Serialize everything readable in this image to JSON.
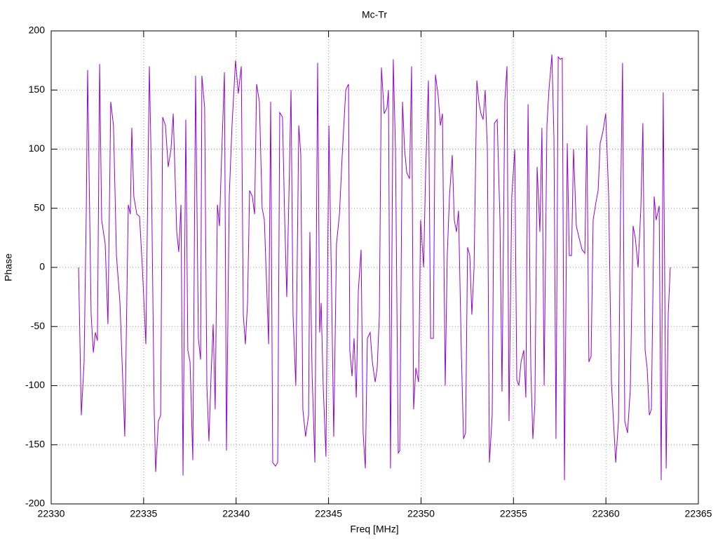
{
  "chart_data": {
    "type": "line",
    "title": "Mc-Tr",
    "x_label": "Freq [MHz]",
    "y_label": "Phase",
    "xlim": [
      22330,
      22365
    ],
    "xticks": [
      22330,
      22335,
      22340,
      22345,
      22350,
      22355,
      22360,
      22365
    ],
    "ylim": [
      -200,
      200
    ],
    "yticks": [
      -200,
      -150,
      -100,
      -50,
      0,
      50,
      100,
      150,
      200
    ],
    "grid": true,
    "series": [
      {
        "color": "#9400d3",
        "x": [
          22331.48,
          22331.63,
          22331.78,
          22331.9,
          22331.97,
          22332.05,
          22332.16,
          22332.28,
          22332.39,
          22332.5,
          22332.62,
          22332.73,
          22332.92,
          22333.07,
          22333.22,
          22333.37,
          22333.53,
          22333.72,
          22333.98,
          22334.17,
          22334.28,
          22334.36,
          22334.47,
          22334.63,
          22334.78,
          22334.93,
          22335.12,
          22335.31,
          22335.42,
          22335.57,
          22335.65,
          22335.8,
          22335.92,
          22336.03,
          22336.18,
          22336.33,
          22336.48,
          22336.6,
          22336.79,
          22336.9,
          22337.02,
          22337.13,
          22337.28,
          22337.39,
          22337.51,
          22337.66,
          22337.81,
          22337.96,
          22338.08,
          22338.15,
          22338.3,
          22338.42,
          22338.53,
          22338.65,
          22338.76,
          22338.87,
          22338.99,
          22339.1,
          22339.21,
          22339.37,
          22339.48,
          22339.63,
          22339.78,
          22339.97,
          22340.12,
          22340.28,
          22340.39,
          22340.5,
          22340.62,
          22340.73,
          22340.88,
          22341.0,
          22341.11,
          22341.26,
          22341.41,
          22341.53,
          22341.64,
          22341.76,
          22341.87,
          22341.98,
          22342.13,
          22342.25,
          22342.36,
          22342.51,
          22342.63,
          22342.74,
          22342.85,
          22342.97,
          22343.08,
          22343.23,
          22343.39,
          22343.5,
          22343.61,
          22343.76,
          22343.92,
          22343.99,
          22344.11,
          22344.26,
          22344.41,
          22344.52,
          22344.6,
          22344.71,
          22344.86,
          22345.02,
          22345.17,
          22345.28,
          22345.43,
          22345.59,
          22345.74,
          22345.93,
          22346.08,
          22346.15,
          22346.27,
          22346.38,
          22346.5,
          22346.61,
          22346.76,
          22346.87,
          22346.99,
          22347.1,
          22347.25,
          22347.37,
          22347.52,
          22347.63,
          22347.75,
          22347.86,
          22348.01,
          22348.16,
          22348.24,
          22348.35,
          22348.5,
          22348.62,
          22348.77,
          22348.85,
          22349.0,
          22349.11,
          22349.23,
          22349.38,
          22349.49,
          22349.6,
          22349.72,
          22349.87,
          22349.98,
          22350.14,
          22350.25,
          22350.4,
          22350.52,
          22350.67,
          22350.78,
          22350.93,
          22351.05,
          22351.16,
          22351.31,
          22351.42,
          22351.54,
          22351.69,
          22351.8,
          22351.92,
          22352.03,
          22352.18,
          22352.3,
          22352.41,
          22352.52,
          22352.64,
          22352.75,
          22352.87,
          22353.02,
          22353.13,
          22353.24,
          22353.36,
          22353.47,
          22353.59,
          22353.7,
          22353.85,
          22353.97,
          22354.12,
          22354.27,
          22354.38,
          22354.53,
          22354.65,
          22354.76,
          22354.91,
          22355.07,
          22355.18,
          22355.29,
          22355.41,
          22355.56,
          22355.67,
          22355.79,
          22355.94,
          22356.05,
          22356.16,
          22356.28,
          22356.43,
          22356.54,
          22356.66,
          22356.81,
          22356.92,
          22357.08,
          22357.19,
          22357.3,
          22357.42,
          22357.53,
          22357.64,
          22357.76,
          22357.91,
          22358.02,
          22358.14,
          22358.25,
          22358.4,
          22358.55,
          22358.71,
          22358.86,
          22358.97,
          22359.08,
          22359.2,
          22359.31,
          22359.46,
          22359.58,
          22359.69,
          22359.84,
          22359.99,
          22360.15,
          22360.3,
          22360.41,
          22360.53,
          22360.68,
          22360.79,
          22360.9,
          22361.02,
          22361.17,
          22361.32,
          22361.47,
          22361.59,
          22361.74,
          22361.89,
          22362.0,
          22362.12,
          22362.23,
          22362.35,
          22362.46,
          22362.61,
          22362.72,
          22362.88,
          22362.99,
          22363.1,
          22363.26,
          22363.37,
          22363.48
        ],
        "values": [
          0,
          -125,
          -80,
          50,
          167,
          80,
          -40,
          -72,
          -55,
          -62,
          172,
          40,
          20,
          -48,
          140,
          120,
          10,
          -30,
          -143,
          53,
          45,
          118,
          60,
          45,
          43,
          0,
          -65,
          170,
          80,
          -120,
          -173,
          -130,
          -125,
          127,
          120,
          85,
          100,
          130,
          30,
          13,
          53,
          -176,
          125,
          -70,
          -80,
          -163,
          162,
          -60,
          -78,
          162,
          135,
          -100,
          -147,
          -90,
          -48,
          -120,
          53,
          35,
          90,
          165,
          -155,
          60,
          120,
          175,
          147,
          170,
          -40,
          -65,
          -30,
          65,
          60,
          45,
          155,
          140,
          50,
          40,
          -10,
          -65,
          140,
          -165,
          -168,
          -165,
          131,
          127,
          40,
          -25,
          55,
          150,
          -40,
          -100,
          120,
          95,
          -120,
          -143,
          -125,
          30,
          -90,
          -165,
          173,
          -55,
          -30,
          -100,
          -160,
          120,
          -25,
          -143,
          20,
          45,
          95,
          150,
          155,
          -70,
          -92,
          -60,
          -110,
          -20,
          15,
          -140,
          -170,
          -60,
          -55,
          -80,
          -97,
          -85,
          -40,
          169,
          130,
          135,
          150,
          -170,
          176,
          100,
          -157,
          -155,
          140,
          100,
          80,
          75,
          170,
          -120,
          -85,
          -97,
          40,
          0,
          80,
          158,
          -60,
          -60,
          163,
          145,
          120,
          130,
          -100,
          10,
          60,
          95,
          40,
          30,
          48,
          -70,
          -145,
          -140,
          17,
          10,
          -40,
          0,
          158,
          140,
          130,
          125,
          150,
          100,
          -165,
          -125,
          122,
          125,
          40,
          -105,
          140,
          170,
          -130,
          60,
          100,
          -95,
          -100,
          -80,
          -70,
          -110,
          138,
          -85,
          -145,
          -115,
          85,
          30,
          118,
          -100,
          120,
          150,
          180,
          110,
          -145,
          178,
          176,
          177,
          -180,
          105,
          10,
          10,
          100,
          35,
          25,
          15,
          12,
          120,
          -80,
          -75,
          40,
          55,
          65,
          105,
          115,
          130,
          60,
          -98,
          -130,
          -165,
          -130,
          50,
          173,
          -130,
          -140,
          -103,
          35,
          25,
          0,
          50,
          122,
          -70,
          -85,
          -125,
          -120,
          60,
          40,
          52,
          -180,
          148,
          -170,
          -40,
          0
        ]
      }
    ]
  }
}
